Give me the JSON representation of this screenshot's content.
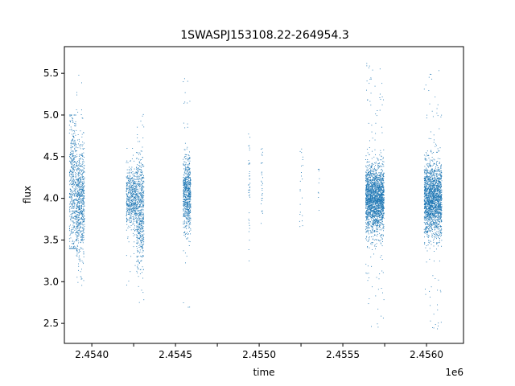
{
  "chart_data": {
    "type": "scatter",
    "title": "1SWASPJ153108.22-264954.3",
    "xlabel": "time",
    "ylabel": "flux",
    "x_offset_label": "1e6",
    "xlim": [
      2453835,
      2456220
    ],
    "ylim": [
      2.26,
      5.82
    ],
    "x_ticks": [
      2453999,
      2454249,
      2454499,
      2454749,
      2454999,
      2455249,
      2455499,
      2455749,
      2455999,
      2456249
    ],
    "x_tick_labels": [
      "2.4540",
      "",
      "2.4545",
      "",
      "2.4550",
      "",
      "2.4555",
      "",
      "2.4560",
      ""
    ],
    "y_ticks": [
      2.5,
      3.0,
      3.5,
      4.0,
      4.5,
      5.0,
      5.5
    ],
    "y_tick_labels": [
      "2.5",
      "3.0",
      "3.5",
      "4.0",
      "4.5",
      "5.0",
      "5.5"
    ],
    "grid": false,
    "legend": "none",
    "marker_color": "#1f77b4",
    "series": [
      {
        "segments": [
          {
            "x": [
              2453865,
              2453905
            ],
            "center": 4.15,
            "sd": 0.45,
            "min": 3.4,
            "max": 5.0,
            "n": 450
          },
          {
            "x": [
              2453905,
              2453955
            ],
            "center": 3.95,
            "sd": 0.35,
            "min": 2.8,
            "max": 5.65,
            "n": 700
          },
          {
            "x": [
              2454205,
              2454265
            ],
            "center": 4.0,
            "sd": 0.18,
            "min": 2.85,
            "max": 4.6,
            "n": 550
          },
          {
            "x": [
              2454265,
              2454310
            ],
            "center": 3.85,
            "sd": 0.35,
            "min": 2.75,
            "max": 5.1,
            "n": 600
          },
          {
            "x": [
              2454545,
              2454590
            ],
            "center": 4.05,
            "sd": 0.22,
            "min": 2.45,
            "max": 5.5,
            "n": 700
          },
          {
            "x": [
              2454935,
              2454945
            ],
            "center": 4.1,
            "sd": 0.35,
            "min": 3.25,
            "max": 5.45,
            "n": 40
          },
          {
            "x": [
              2455010,
              2455020
            ],
            "center": 4.15,
            "sd": 0.3,
            "min": 3.7,
            "max": 5.05,
            "n": 30
          },
          {
            "x": [
              2455240,
              2455260
            ],
            "center": 4.2,
            "sd": 0.3,
            "min": 3.4,
            "max": 5.05,
            "n": 22
          },
          {
            "x": [
              2455350,
              2455360
            ],
            "center": 4.1,
            "sd": 0.25,
            "min": 3.75,
            "max": 4.35,
            "n": 10
          },
          {
            "x": [
              2455635,
              2455745
            ],
            "center": 4.0,
            "sd": 0.2,
            "min": 2.45,
            "max": 5.65,
            "n": 2200
          },
          {
            "x": [
              2455985,
              2456090
            ],
            "center": 4.0,
            "sd": 0.22,
            "min": 2.42,
            "max": 5.6,
            "n": 2000
          }
        ]
      }
    ]
  }
}
